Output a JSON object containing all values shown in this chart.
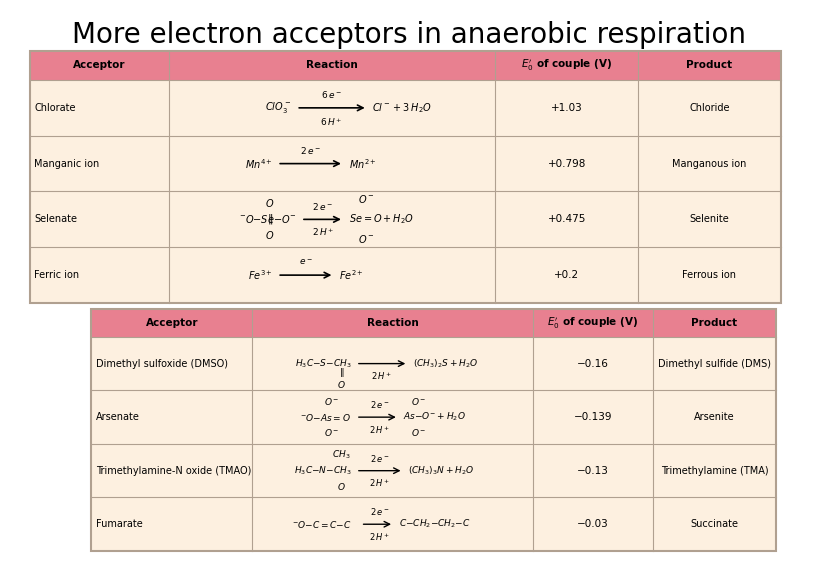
{
  "title": "More electron acceptors in anaerobic respiration",
  "title_font": "Comic Sans MS",
  "title_size": 20,
  "bg_color": "#ffffff",
  "table1": {
    "header_bg": "#e88090",
    "row_bg": "#fdf0e0",
    "border_color": "#c0c0c0",
    "headers": [
      "Acceptor",
      "Reaction",
      "E₀’ of couple (V)",
      "Product"
    ],
    "rows": [
      {
        "acceptor": "Chlorate",
        "reaction_img": "ClO₃⁻ → Cl⁻ + 3 H₂O\n6 e⁻ / 6 H⁺",
        "e0": "+1.03",
        "product": "Chloride"
      },
      {
        "acceptor": "Manganic ion",
        "reaction_img": "Mn⁴⁺ → Mn²⁺\n2 e⁻",
        "e0": "+0.798",
        "product": "Manganous ion"
      },
      {
        "acceptor": "Selenate",
        "reaction_img": "⁻O-Se-O⁻ → SeO + H₂O\n2 e⁻ / 2 H⁺",
        "e0": "+0.475",
        "product": "Selenite"
      },
      {
        "acceptor": "Ferric ion",
        "reaction_img": "Fe³⁺ → Fe²⁺\ne⁻",
        "e0": "+0.2",
        "product": "Ferrous ion"
      }
    ]
  },
  "table2": {
    "header_bg": "#e88090",
    "row_bg": "#fdf0e0",
    "border_color": "#c0c0c0",
    "headers": [
      "Acceptor",
      "Reaction",
      "E₀’ of couple (V)",
      "Product"
    ],
    "rows": [
      {
        "acceptor": "Dimethyl sulfoxide (DMSO)",
        "reaction_img": "H₃C-S-CH₃ → (CH₃)₂S + H₂O\n2 H⁺",
        "e0": "−0.16",
        "product": "Dimethyl sulfide (DMS)"
      },
      {
        "acceptor": "Arsenate",
        "reaction_img": "⁻O-As=O → As-O⁻ + H₂O\n2 e⁻ / 2 H⁺",
        "e0": "−0.139",
        "product": "Arsenite"
      },
      {
        "acceptor": "Trimethylamine-N oxide (TMAO)",
        "reaction_img": "H₃C-N-CH₃ → (CH₃)₃N + H₂O\n2 e⁻ / 2 H⁺",
        "e0": "−0.13",
        "product": "Trimethylamine (TMA)"
      },
      {
        "acceptor": "Fumarate",
        "reaction_img": "C=C-C → C-CH₂-CH₂-C\n2 e⁻ / 2 H⁺",
        "e0": "−0.03",
        "product": "Succinate"
      }
    ]
  }
}
